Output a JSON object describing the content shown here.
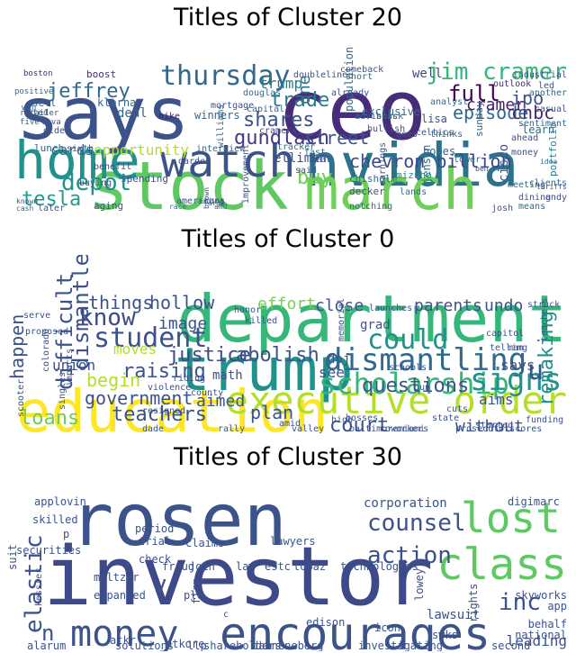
{
  "chart_data": [
    {
      "type": "wordcloud",
      "title": "Titles of Cluster 20",
      "words": [
        {
          "text": "says",
          "color": "#3b528b"
        },
        {
          "text": "ceo",
          "color": "#472c7a"
        },
        {
          "text": "stock",
          "color": "#5ec962"
        },
        {
          "text": "nvidia",
          "color": "#2c728e"
        },
        {
          "text": "home",
          "color": "#21918c"
        },
        {
          "text": "march",
          "color": "#6ece58"
        },
        {
          "text": "watch",
          "color": "#3b528b"
        },
        {
          "text": "thursday",
          "color": "#31688e"
        },
        {
          "text": "jim cramer",
          "color": "#35b779"
        },
        {
          "text": "depot",
          "color": "#21918c"
        },
        {
          "text": "chevron billion",
          "color": "#3e4989"
        },
        {
          "text": "gundlach",
          "color": "#443983"
        },
        {
          "text": "street",
          "color": "#3b528b"
        },
        {
          "text": "full",
          "color": "#440154"
        },
        {
          "text": "episode",
          "color": "#31688e"
        },
        {
          "text": "cnbc",
          "color": "#482878"
        },
        {
          "text": "tesla",
          "color": "#1f9e89"
        },
        {
          "text": "jeffrey",
          "color": "#31688e"
        },
        {
          "text": "trade",
          "color": "#287c8e"
        },
        {
          "text": "shares",
          "color": "#3b528b"
        },
        {
          "text": "cramer",
          "color": "#481a6c"
        },
        {
          "text": "ipo",
          "color": "#3b528b"
        },
        {
          "text": "buy",
          "color": "#6ece58"
        },
        {
          "text": "cards",
          "color": "#31688e"
        },
        {
          "text": "opportunity",
          "color": "#b5de2b"
        },
        {
          "text": "one",
          "color": "#2c728e"
        },
        {
          "text": "cisco",
          "color": "#3b528b"
        },
        {
          "text": "nike",
          "color": "#481a6c"
        },
        {
          "text": "trump",
          "color": "#287c8e"
        },
        {
          "text": "deal",
          "color": "#31688e"
        },
        {
          "text": "boston",
          "color": "#472c7a"
        },
        {
          "text": "sell",
          "color": "#31688e"
        },
        {
          "text": "well",
          "color": "#3e4989"
        },
        {
          "text": "boost",
          "color": "#472c7a"
        },
        {
          "text": "winners",
          "color": "#31688e"
        },
        {
          "text": "doubleline",
          "color": "#3b528b"
        },
        {
          "text": "portfolio",
          "color": "#26828e"
        },
        {
          "text": "learn",
          "color": "#31688e"
        },
        {
          "text": "outlook",
          "color": "#472c7a"
        },
        {
          "text": "mizuho",
          "color": "#21918c"
        },
        {
          "text": "spending",
          "color": "#3b528b"
        },
        {
          "text": "lunch",
          "color": "#31688e"
        },
        {
          "text": "benefit",
          "color": "#3e4989"
        },
        {
          "text": "sixth",
          "color": "#3b528b"
        },
        {
          "text": "buying",
          "color": "#3b528b"
        },
        {
          "text": "interview",
          "color": "#31688e"
        },
        {
          "text": "darden",
          "color": "#3b528b"
        },
        {
          "text": "cramers",
          "color": "#3e4989"
        },
        {
          "text": "advisors",
          "color": "#31688e"
        },
        {
          "text": "elliman",
          "color": "#3b528b"
        },
        {
          "text": "meeting",
          "color": "#31688e"
        },
        {
          "text": "dining",
          "color": "#3b528b"
        },
        {
          "text": "means",
          "color": "#31688e"
        },
        {
          "text": "josh",
          "color": "#3b528b"
        },
        {
          "text": "lands",
          "color": "#31688e"
        },
        {
          "text": "decker",
          "color": "#3b528b"
        },
        {
          "text": "notching",
          "color": "#31688e"
        },
        {
          "text": "chisholm",
          "color": "#31688e"
        },
        {
          "text": "later",
          "color": "#3b528b"
        },
        {
          "text": "aging",
          "color": "#3b528b"
        },
        {
          "text": "cash",
          "color": "#31688e"
        },
        {
          "text": "known",
          "color": "#3b528b"
        },
        {
          "text": "ted",
          "color": "#31688e"
        },
        {
          "text": "five",
          "color": "#31688e"
        },
        {
          "text": "cava",
          "color": "#3b528b"
        },
        {
          "text": "win",
          "color": "#31688e"
        },
        {
          "text": "retailer",
          "color": "#3b528b"
        },
        {
          "text": "positive",
          "color": "#31688e"
        },
        {
          "text": "older",
          "color": "#3b528b"
        },
        {
          "text": "klarna",
          "color": "#31688e"
        },
        {
          "text": "lisa",
          "color": "#3b528b"
        },
        {
          "text": "black",
          "color": "#31688e"
        },
        {
          "text": "celtics",
          "color": "#3b528b"
        },
        {
          "text": "hopes",
          "color": "#31688e"
        },
        {
          "text": "goes",
          "color": "#3b528b"
        },
        {
          "text": "thinks",
          "color": "#31688e"
        },
        {
          "text": "industrial",
          "color": "#3b528b"
        },
        {
          "text": "another",
          "color": "#31688e"
        },
        {
          "text": "casual",
          "color": "#3b528b"
        },
        {
          "text": "clients",
          "color": "#31688e"
        },
        {
          "text": "led",
          "color": "#3b528b"
        },
        {
          "text": "sentiment",
          "color": "#31688e"
        },
        {
          "text": "andy",
          "color": "#3b528b"
        },
        {
          "text": "douglas",
          "color": "#31688e"
        },
        {
          "text": "mortgage",
          "color": "#3b528b"
        },
        {
          "text": "capital",
          "color": "#31688e"
        },
        {
          "text": "americans",
          "color": "#3b528b"
        },
        {
          "text": "williams",
          "color": "#31688e"
        },
        {
          "text": "said",
          "color": "#3b528b"
        },
        {
          "text": "fast",
          "color": "#31688e"
        },
        {
          "text": "beat",
          "color": "#3b528b"
        },
        {
          "text": "tracker",
          "color": "#31688e"
        },
        {
          "text": "improvement",
          "color": "#3b528b"
        },
        {
          "text": "race",
          "color": "#31688e"
        },
        {
          "text": "adding",
          "color": "#3b528b"
        },
        {
          "text": "amd",
          "color": "#31688e"
        },
        {
          "text": "brown",
          "color": "#3b528b"
        },
        {
          "text": "fargo",
          "color": "#31688e"
        },
        {
          "text": "tariffs",
          "color": "#3b528b"
        },
        {
          "text": "idea",
          "color": "#31688e"
        },
        {
          "text": "money",
          "color": "#3b528b"
        },
        {
          "text": "sunday",
          "color": "#31688e"
        },
        {
          "text": "ahead",
          "color": "#3b528b"
        },
        {
          "text": "lower",
          "color": "#31688e"
        },
        {
          "text": "ben",
          "color": "#3b528b"
        },
        {
          "text": "jensen",
          "color": "#31688e"
        },
        {
          "text": "earnings",
          "color": "#3b528b"
        },
        {
          "text": "population",
          "color": "#31688e"
        },
        {
          "text": "already",
          "color": "#3b528b"
        },
        {
          "text": "short",
          "color": "#31688e"
        },
        {
          "text": "comeback",
          "color": "#3b528b"
        },
        {
          "text": "analyst",
          "color": "#31688e"
        },
        {
          "text": "bullish",
          "color": "#3b528b"
        },
        {
          "text": "exclusive",
          "color": "#31688e"
        },
        {
          "text": "ddoordash",
          "color": "#3b528b"
        }
      ]
    },
    {
      "type": "wordcloud",
      "title": "Titles of Cluster 0",
      "words": [
        {
          "text": "department",
          "color": "#35b779"
        },
        {
          "text": "education",
          "color": "#fde725"
        },
        {
          "text": "trump",
          "color": "#21918c"
        },
        {
          "text": "executive order",
          "color": "#b5de2b"
        },
        {
          "text": "dismantling",
          "color": "#31688e"
        },
        {
          "text": "scholarship",
          "color": "#35b779"
        },
        {
          "text": "signs",
          "color": "#21918c"
        },
        {
          "text": "student",
          "color": "#3b528b"
        },
        {
          "text": "could",
          "color": "#21918c"
        },
        {
          "text": "u",
          "color": "#3b528b"
        },
        {
          "text": "know",
          "color": "#3e4989"
        },
        {
          "text": "dismantle",
          "color": "#3b528b"
        },
        {
          "text": "difficult",
          "color": "#3b528b"
        },
        {
          "text": "justice",
          "color": "#3e4989"
        },
        {
          "text": "abolish",
          "color": "#3b528b"
        },
        {
          "text": "plan",
          "color": "#3b528b"
        },
        {
          "text": "teachers",
          "color": "#3b528b"
        },
        {
          "text": "government",
          "color": "#3b528b"
        },
        {
          "text": "raising",
          "color": "#3b528b"
        },
        {
          "text": "loans",
          "color": "#6ece58"
        },
        {
          "text": "questions",
          "color": "#3b528b"
        },
        {
          "text": "court",
          "color": "#3b528b"
        },
        {
          "text": "aimed",
          "color": "#3b528b"
        },
        {
          "text": "hollow",
          "color": "#3b528b"
        },
        {
          "text": "image",
          "color": "#3b528b"
        },
        {
          "text": "effort",
          "color": "#7ad151"
        },
        {
          "text": "close",
          "color": "#3b528b"
        },
        {
          "text": "parents",
          "color": "#3b528b"
        },
        {
          "text": "undo",
          "color": "#3b528b"
        },
        {
          "text": "things",
          "color": "#3b528b"
        },
        {
          "text": "moves",
          "color": "#b5de2b"
        },
        {
          "text": "begin",
          "color": "#b5de2b"
        },
        {
          "text": "union",
          "color": "#3b528b"
        },
        {
          "text": "happen",
          "color": "#3b528b"
        },
        {
          "text": "remaking",
          "color": "#21918c"
        },
        {
          "text": "without",
          "color": "#3b528b"
        },
        {
          "text": "aims",
          "color": "#3b528b"
        },
        {
          "text": "says",
          "color": "#3b528b"
        },
        {
          "text": "see",
          "color": "#3b528b"
        },
        {
          "text": "doj",
          "color": "#3b528b"
        },
        {
          "text": "grad",
          "color": "#3b528b"
        },
        {
          "text": "schools",
          "color": "#3b528b"
        },
        {
          "text": "telling",
          "color": "#3b528b"
        },
        {
          "text": "struck",
          "color": "#3b528b"
        },
        {
          "text": "teachers",
          "color": "#3b528b"
        },
        {
          "text": "memorial",
          "color": "#3b528b"
        },
        {
          "text": "capitol",
          "color": "#3b528b"
        },
        {
          "text": "started",
          "color": "#3b528b"
        },
        {
          "text": "funding",
          "color": "#3b528b"
        },
        {
          "text": "prosecutorscores",
          "color": "#3b528b"
        },
        {
          "text": "miami",
          "color": "#3b528b"
        },
        {
          "text": "coworkers",
          "color": "#3b528b"
        },
        {
          "text": "baltimore",
          "color": "#3b528b"
        },
        {
          "text": "high",
          "color": "#3b528b"
        },
        {
          "text": "bosses",
          "color": "#3b528b"
        },
        {
          "text": "valley",
          "color": "#3b528b"
        },
        {
          "text": "amid",
          "color": "#3b528b"
        },
        {
          "text": "math",
          "color": "#3b528b"
        },
        {
          "text": "county",
          "color": "#3b528b"
        },
        {
          "text": "riding",
          "color": "#3b528b"
        },
        {
          "text": "violence",
          "color": "#3b528b"
        },
        {
          "text": "resigned",
          "color": "#3b528b"
        },
        {
          "text": "singles",
          "color": "#3b528b"
        },
        {
          "text": "impacts",
          "color": "#3b528b"
        },
        {
          "text": "colorado",
          "color": "#3b528b"
        },
        {
          "text": "scooter",
          "color": "#3b528b"
        },
        {
          "text": "proposed",
          "color": "#3b528b"
        },
        {
          "text": "serve",
          "color": "#3b528b"
        },
        {
          "text": "honor",
          "color": "#3b528b"
        },
        {
          "text": "killed",
          "color": "#3b528b"
        },
        {
          "text": "launches",
          "color": "#3b528b"
        },
        {
          "text": "dade",
          "color": "#3b528b"
        },
        {
          "text": "rally",
          "color": "#3b528b"
        },
        {
          "text": "state",
          "color": "#3b528b"
        },
        {
          "text": "cuts",
          "color": "#3b528b"
        },
        {
          "text": "gun",
          "color": "#3b528b"
        },
        {
          "text": "man",
          "color": "#3b528b"
        }
      ]
    },
    {
      "type": "wordcloud",
      "title": "Titles of Cluster 30",
      "words": [
        {
          "text": "investor",
          "color": "#3e4989"
        },
        {
          "text": "rosen",
          "color": "#3b528b"
        },
        {
          "text": "encourages",
          "color": "#3b528b"
        },
        {
          "text": "class",
          "color": "#5ec962"
        },
        {
          "text": "lost",
          "color": "#5ec962"
        },
        {
          "text": "money",
          "color": "#3b528b"
        },
        {
          "text": "counsel",
          "color": "#3b528b"
        },
        {
          "text": "action",
          "color": "#3b528b"
        },
        {
          "text": "inc",
          "color": "#3b528b"
        },
        {
          "text": "elastic",
          "color": "#3b528b"
        },
        {
          "text": "n",
          "color": "#3b528b"
        },
        {
          "text": "v",
          "color": "#3b528b"
        },
        {
          "text": "leading",
          "color": "#3b528b"
        },
        {
          "text": "lawsuit",
          "color": "#3b528b"
        },
        {
          "text": "corporation",
          "color": "#3b528b"
        },
        {
          "text": "applovin",
          "color": "#3b528b"
        },
        {
          "text": "skilled",
          "color": "#3b528b"
        },
        {
          "text": "securities",
          "color": "#3b528b"
        },
        {
          "text": "suit",
          "color": "#3b528b"
        },
        {
          "text": "period",
          "color": "#3b528b"
        },
        {
          "text": "trial",
          "color": "#3b528b"
        },
        {
          "text": "claims",
          "color": "#3b528b"
        },
        {
          "text": "lawyers",
          "color": "#3b528b"
        },
        {
          "text": "meltzer",
          "color": "#3b528b"
        },
        {
          "text": "check",
          "color": "#3b528b"
        },
        {
          "text": "fraud",
          "color": "#3b528b"
        },
        {
          "text": "join",
          "color": "#3b528b"
        },
        {
          "text": "law",
          "color": "#3b528b"
        },
        {
          "text": "estc",
          "color": "#3b528b"
        },
        {
          "text": "topaz",
          "color": "#3b528b"
        },
        {
          "text": "technologies",
          "color": "#3b528b"
        },
        {
          "text": "expanded",
          "color": "#3b528b"
        },
        {
          "text": "plc",
          "color": "#3b528b"
        },
        {
          "text": "firm",
          "color": "#3b528b"
        },
        {
          "text": "digimarc",
          "color": "#3b528b"
        },
        {
          "text": "lowey",
          "color": "#3b528b"
        },
        {
          "text": "skyworks",
          "color": "#3b528b"
        },
        {
          "text": "app",
          "color": "#3b528b"
        },
        {
          "text": "behalf",
          "color": "#3b528b"
        },
        {
          "text": "national",
          "color": "#3b528b"
        },
        {
          "text": "second",
          "color": "#3b528b"
        },
        {
          "text": "rights",
          "color": "#3b528b"
        },
        {
          "text": "swks",
          "color": "#3b528b"
        },
        {
          "text": "icon",
          "color": "#3b528b"
        },
        {
          "text": "edison",
          "color": "#3b528b"
        },
        {
          "text": "kessler",
          "color": "#3b528b"
        },
        {
          "text": "atkr",
          "color": "#3b528b"
        },
        {
          "text": "alarum",
          "color": "#3b528b"
        },
        {
          "text": "solutions",
          "color": "#3b528b"
        },
        {
          "text": "atkore",
          "color": "#3b528b"
        },
        {
          "text": "llp",
          "color": "#3b528b"
        },
        {
          "text": "shareholders",
          "color": "#3b528b"
        },
        {
          "text": "danneneberg",
          "color": "#3b528b"
        },
        {
          "text": "investigating",
          "color": "#3b528b"
        },
        {
          "text": "p",
          "color": "#3b528b"
        },
        {
          "text": "c",
          "color": "#3b528b"
        }
      ]
    }
  ]
}
